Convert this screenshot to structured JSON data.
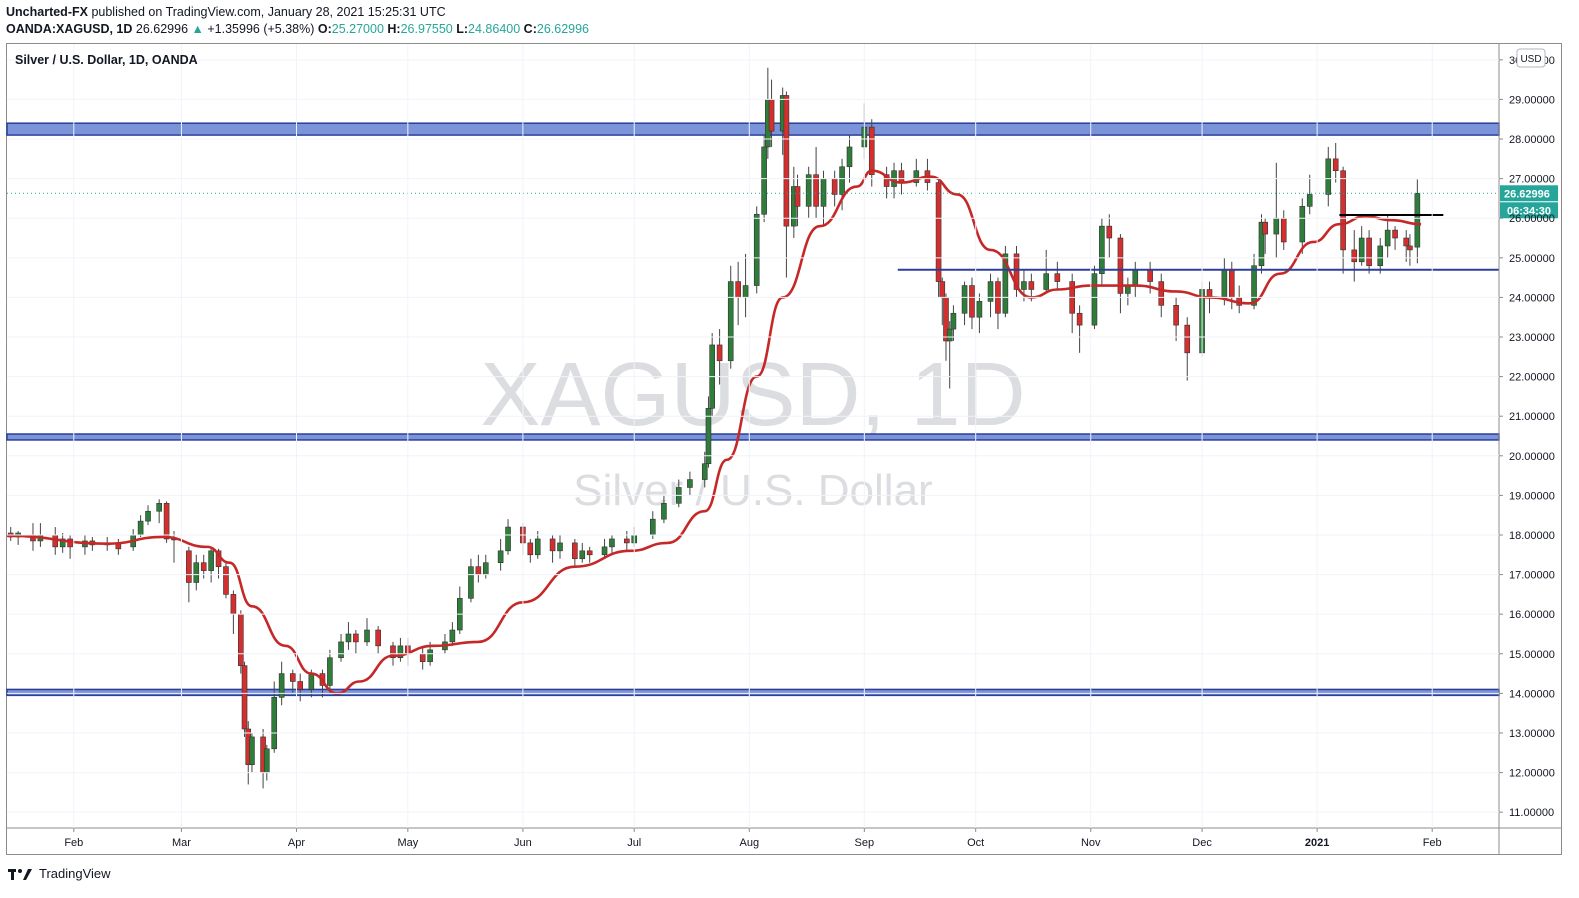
{
  "header": {
    "author": "Uncharted-FX",
    "published": "published on TradingView.com, January 28, 2021 15:25:31 UTC",
    "symbol": "OANDA:XAGUSD, 1D",
    "last": "26.62996",
    "change": "+1.35996 (+5.38%)",
    "o_label": "O:",
    "o": "25.27000",
    "h_label": "H:",
    "h": "26.97550",
    "l_label": "L:",
    "l": "24.86400",
    "c_label": "C:",
    "c": "26.62996"
  },
  "footer": {
    "brand": "TradingView"
  },
  "colors": {
    "up": "#26a69a",
    "down": "#ef5350",
    "candle_up": "#2f7d3a",
    "candle_down": "#d32f2f",
    "ma": "#c62828",
    "zone_fill": "#7b93d9",
    "zone_stroke": "#2c3e9a",
    "accent": "#26a69a"
  },
  "chart_data": {
    "type": "candlestick",
    "title": "Silver / U.S. Dollar, 1D, OANDA",
    "watermark_symbol": "XAGUSD, 1D",
    "watermark_name": "Silver / U.S. Dollar",
    "currency": "USD",
    "ylim": [
      10.6,
      30.4
    ],
    "y_ticks": [
      "30.00000",
      "29.00000",
      "28.00000",
      "27.00000",
      "26.00000",
      "25.00000",
      "24.00000",
      "23.00000",
      "22.00000",
      "21.00000",
      "20.00000",
      "19.00000",
      "18.00000",
      "17.00000",
      "16.00000",
      "15.00000",
      "14.00000",
      "13.00000",
      "12.00000",
      "11.00000"
    ],
    "x_ticks": [
      {
        "label": "Feb",
        "date": "2020-02-01"
      },
      {
        "label": "Mar",
        "date": "2020-03-01"
      },
      {
        "label": "Apr",
        "date": "2020-04-01"
      },
      {
        "label": "May",
        "date": "2020-05-01"
      },
      {
        "label": "Jun",
        "date": "2020-06-01"
      },
      {
        "label": "Jul",
        "date": "2020-07-01"
      },
      {
        "label": "Aug",
        "date": "2020-08-01"
      },
      {
        "label": "Sep",
        "date": "2020-09-01"
      },
      {
        "label": "Oct",
        "date": "2020-10-01"
      },
      {
        "label": "Nov",
        "date": "2020-11-01"
      },
      {
        "label": "Dec",
        "date": "2020-12-01"
      },
      {
        "label": "2021",
        "date": "2021-01-01",
        "bold": true
      },
      {
        "label": "Feb",
        "date": "2021-02-01"
      }
    ],
    "x_range": [
      "2020-01-14",
      "2021-02-19"
    ],
    "last_price": "26.62996",
    "last_value": 26.63,
    "countdown": "06:34:30",
    "zones": [
      {
        "from": 28.1,
        "to": 28.4,
        "start": "2020-01-14",
        "end": "2021-02-19"
      },
      {
        "from": 20.4,
        "to": 20.55,
        "start": "2020-01-14",
        "end": "2021-02-19"
      },
      {
        "from": 13.95,
        "to": 14.1,
        "start": "2020-01-14",
        "end": "2021-02-19"
      }
    ],
    "hlines": [
      {
        "value": 24.7,
        "start": "2020-09-10",
        "end": "2021-02-19",
        "color": "#2c3e9a"
      },
      {
        "value": 26.08,
        "start": "2021-01-07",
        "end": "2021-02-04",
        "color": "#000000"
      }
    ],
    "ma_series": [
      [
        "2020-01-14",
        17.98
      ],
      [
        "2020-02-10",
        17.78
      ],
      [
        "2020-02-25",
        17.95
      ],
      [
        "2020-03-08",
        17.7
      ],
      [
        "2020-03-14",
        17.3
      ],
      [
        "2020-03-20",
        16.2
      ],
      [
        "2020-03-29",
        15.2
      ],
      [
        "2020-04-05",
        14.5
      ],
      [
        "2020-04-12",
        14.0
      ],
      [
        "2020-04-18",
        14.3
      ],
      [
        "2020-04-27",
        14.95
      ],
      [
        "2020-05-08",
        15.2
      ],
      [
        "2020-05-20",
        15.3
      ],
      [
        "2020-06-01",
        16.3
      ],
      [
        "2020-06-15",
        17.2
      ],
      [
        "2020-06-30",
        17.6
      ],
      [
        "2020-07-10",
        17.8
      ],
      [
        "2020-07-20",
        18.6
      ],
      [
        "2020-07-26",
        19.9
      ],
      [
        "2020-08-03",
        22.0
      ],
      [
        "2020-08-10",
        24.0
      ],
      [
        "2020-08-20",
        25.8
      ],
      [
        "2020-08-30",
        26.8
      ],
      [
        "2020-09-03",
        27.2
      ],
      [
        "2020-09-11",
        26.9
      ],
      [
        "2020-09-19",
        27.05
      ],
      [
        "2020-09-26",
        26.6
      ],
      [
        "2020-10-05",
        25.2
      ],
      [
        "2020-10-16",
        24.0
      ],
      [
        "2020-10-23",
        24.2
      ],
      [
        "2020-11-01",
        24.3
      ],
      [
        "2020-11-13",
        24.3
      ],
      [
        "2020-11-24",
        24.15
      ],
      [
        "2020-12-03",
        24.0
      ],
      [
        "2020-12-14",
        23.85
      ],
      [
        "2020-12-22",
        24.6
      ],
      [
        "2020-12-31",
        25.4
      ],
      [
        "2021-01-07",
        25.85
      ],
      [
        "2021-01-14",
        26.05
      ],
      [
        "2021-01-21",
        25.95
      ],
      [
        "2021-01-29",
        25.85
      ]
    ],
    "candles": [
      [
        "2020-01-15",
        18.05,
        17.95,
        18.2,
        17.85
      ],
      [
        "2020-01-17",
        17.95,
        18.05,
        18.1,
        17.75
      ],
      [
        "2020-01-21",
        18.0,
        17.85,
        18.3,
        17.6
      ],
      [
        "2020-01-23",
        17.85,
        18.0,
        18.3,
        17.7
      ],
      [
        "2020-01-27",
        18.0,
        17.7,
        18.2,
        17.5
      ],
      [
        "2020-01-29",
        17.7,
        17.9,
        18.05,
        17.55
      ],
      [
        "2020-01-31",
        17.9,
        17.7,
        18.0,
        17.4
      ],
      [
        "2020-02-04",
        17.7,
        17.85,
        18.0,
        17.5
      ],
      [
        "2020-02-06",
        17.85,
        17.75,
        17.95,
        17.6
      ],
      [
        "2020-02-10",
        17.75,
        17.8,
        17.95,
        17.6
      ],
      [
        "2020-02-13",
        17.8,
        17.65,
        17.9,
        17.5
      ],
      [
        "2020-02-17",
        17.7,
        18.0,
        18.15,
        17.6
      ],
      [
        "2020-02-19",
        18.0,
        18.35,
        18.5,
        17.95
      ],
      [
        "2020-02-21",
        18.35,
        18.6,
        18.75,
        18.25
      ],
      [
        "2020-02-24",
        18.6,
        18.8,
        18.9,
        18.3
      ],
      [
        "2020-02-26",
        18.8,
        17.9,
        18.85,
        17.8
      ],
      [
        "2020-02-28",
        17.9,
        17.9,
        18.1,
        17.3
      ],
      [
        "2020-03-03",
        17.6,
        16.8,
        17.7,
        16.3
      ],
      [
        "2020-03-05",
        16.8,
        17.3,
        17.5,
        16.6
      ],
      [
        "2020-03-07",
        17.3,
        17.1,
        17.5,
        16.9
      ],
      [
        "2020-03-09",
        17.1,
        17.6,
        17.7,
        16.8
      ],
      [
        "2020-03-11",
        17.6,
        17.2,
        17.65,
        16.9
      ],
      [
        "2020-03-13",
        17.2,
        16.5,
        17.3,
        16.4
      ],
      [
        "2020-03-15",
        16.5,
        16.0,
        16.6,
        15.5
      ],
      [
        "2020-03-17",
        16.0,
        14.7,
        16.1,
        14.5
      ],
      [
        "2020-03-18",
        14.7,
        13.1,
        14.8,
        12.9
      ],
      [
        "2020-03-19",
        13.1,
        12.2,
        13.3,
        11.7
      ],
      [
        "2020-03-20",
        12.2,
        12.9,
        13.0,
        12.0
      ],
      [
        "2020-03-23",
        12.9,
        12.0,
        13.1,
        11.6
      ],
      [
        "2020-03-24",
        12.0,
        12.6,
        12.7,
        11.8
      ],
      [
        "2020-03-26",
        12.6,
        13.9,
        14.3,
        12.5
      ],
      [
        "2020-03-28",
        13.9,
        14.5,
        14.8,
        13.7
      ],
      [
        "2020-03-31",
        14.5,
        14.3,
        14.6,
        14.0
      ],
      [
        "2020-04-02",
        14.3,
        14.1,
        14.5,
        13.8
      ],
      [
        "2020-04-05",
        14.1,
        14.5,
        14.6,
        13.9
      ],
      [
        "2020-04-08",
        14.5,
        14.2,
        14.6,
        13.9
      ],
      [
        "2020-04-10",
        14.2,
        14.9,
        15.1,
        14.0
      ],
      [
        "2020-04-13",
        14.9,
        15.3,
        15.5,
        14.8
      ],
      [
        "2020-04-15",
        15.3,
        15.5,
        15.8,
        15.1
      ],
      [
        "2020-04-17",
        15.5,
        15.3,
        15.6,
        15.0
      ],
      [
        "2020-04-20",
        15.3,
        15.6,
        15.9,
        15.2
      ],
      [
        "2020-04-23",
        15.6,
        15.2,
        15.7,
        15.0
      ],
      [
        "2020-04-27",
        15.2,
        14.9,
        15.3,
        14.7
      ],
      [
        "2020-04-29",
        14.9,
        15.2,
        15.4,
        14.8
      ],
      [
        "2020-05-01",
        15.2,
        15.0,
        15.4,
        14.7
      ],
      [
        "2020-05-05",
        15.0,
        14.8,
        15.2,
        14.6
      ],
      [
        "2020-05-07",
        14.8,
        15.1,
        15.3,
        14.7
      ],
      [
        "2020-05-11",
        15.1,
        15.3,
        15.5,
        15.0
      ],
      [
        "2020-05-13",
        15.3,
        15.6,
        15.8,
        15.2
      ],
      [
        "2020-05-15",
        15.6,
        16.4,
        16.7,
        15.5
      ],
      [
        "2020-05-18",
        16.4,
        17.2,
        17.4,
        16.3
      ],
      [
        "2020-05-20",
        17.2,
        17.0,
        17.5,
        16.8
      ],
      [
        "2020-05-22",
        17.0,
        17.3,
        17.5,
        16.9
      ],
      [
        "2020-05-26",
        17.3,
        17.6,
        17.9,
        17.1
      ],
      [
        "2020-05-28",
        17.6,
        18.2,
        18.4,
        17.5
      ],
      [
        "2020-06-01",
        18.2,
        17.8,
        18.3,
        17.5
      ],
      [
        "2020-06-03",
        17.8,
        17.5,
        17.9,
        17.3
      ],
      [
        "2020-06-05",
        17.5,
        17.9,
        18.1,
        17.4
      ],
      [
        "2020-06-09",
        17.9,
        17.6,
        18.0,
        17.3
      ],
      [
        "2020-06-11",
        17.6,
        17.8,
        18.0,
        17.4
      ],
      [
        "2020-06-15",
        17.8,
        17.4,
        17.9,
        17.2
      ],
      [
        "2020-06-17",
        17.4,
        17.6,
        17.8,
        17.3
      ],
      [
        "2020-06-19",
        17.6,
        17.5,
        17.7,
        17.3
      ],
      [
        "2020-06-23",
        17.5,
        17.7,
        17.9,
        17.4
      ],
      [
        "2020-06-25",
        17.7,
        17.9,
        18.0,
        17.5
      ],
      [
        "2020-06-29",
        17.9,
        17.8,
        18.1,
        17.6
      ],
      [
        "2020-07-01",
        17.8,
        18.0,
        18.2,
        17.7
      ],
      [
        "2020-07-06",
        18.0,
        18.4,
        18.6,
        17.9
      ],
      [
        "2020-07-09",
        18.4,
        18.8,
        19.0,
        18.3
      ],
      [
        "2020-07-13",
        18.8,
        19.2,
        19.4,
        18.7
      ],
      [
        "2020-07-16",
        19.2,
        19.4,
        19.6,
        19.0
      ],
      [
        "2020-07-20",
        19.4,
        19.8,
        20.1,
        19.2
      ],
      [
        "2020-07-21",
        19.8,
        21.2,
        21.5,
        19.7
      ],
      [
        "2020-07-22",
        21.2,
        22.8,
        23.1,
        21.0
      ],
      [
        "2020-07-24",
        22.8,
        22.4,
        23.2,
        21.8
      ],
      [
        "2020-07-27",
        22.4,
        24.4,
        24.8,
        22.2
      ],
      [
        "2020-07-29",
        24.4,
        24.0,
        24.9,
        23.3
      ],
      [
        "2020-07-31",
        24.0,
        24.3,
        25.1,
        23.5
      ],
      [
        "2020-08-03",
        24.3,
        26.1,
        26.3,
        24.1
      ],
      [
        "2020-08-05",
        26.1,
        27.8,
        28.1,
        25.9
      ],
      [
        "2020-08-06",
        27.8,
        29.0,
        29.8,
        27.5
      ],
      [
        "2020-08-07",
        29.0,
        28.2,
        29.5,
        27.8
      ],
      [
        "2020-08-10",
        28.2,
        29.1,
        29.3,
        27.6
      ],
      [
        "2020-08-11",
        29.1,
        25.8,
        29.2,
        24.5
      ],
      [
        "2020-08-13",
        25.8,
        26.8,
        27.3,
        25.5
      ],
      [
        "2020-08-14",
        26.8,
        26.3,
        27.1,
        25.8
      ],
      [
        "2020-08-17",
        26.3,
        27.1,
        27.3,
        26.0
      ],
      [
        "2020-08-19",
        27.1,
        26.3,
        27.8,
        26.0
      ],
      [
        "2020-08-21",
        26.3,
        27.0,
        27.2,
        25.8
      ],
      [
        "2020-08-24",
        27.0,
        26.6,
        27.2,
        26.3
      ],
      [
        "2020-08-26",
        26.6,
        27.3,
        27.5,
        26.2
      ],
      [
        "2020-08-28",
        27.3,
        27.8,
        28.1,
        26.9
      ],
      [
        "2020-09-01",
        27.8,
        28.3,
        28.9,
        27.5
      ],
      [
        "2020-09-03",
        28.3,
        27.1,
        28.5,
        26.8
      ],
      [
        "2020-09-07",
        27.1,
        26.8,
        27.3,
        26.5
      ],
      [
        "2020-09-09",
        26.8,
        27.2,
        27.4,
        26.5
      ],
      [
        "2020-09-11",
        27.2,
        26.9,
        27.4,
        26.6
      ],
      [
        "2020-09-15",
        26.9,
        27.2,
        27.5,
        26.8
      ],
      [
        "2020-09-18",
        27.2,
        26.9,
        27.5,
        26.7
      ],
      [
        "2020-09-21",
        26.9,
        24.4,
        27.0,
        24.0
      ],
      [
        "2020-09-22",
        24.4,
        24.0,
        24.5,
        23.3
      ],
      [
        "2020-09-23",
        24.0,
        22.9,
        24.1,
        22.4
      ],
      [
        "2020-09-24",
        22.9,
        23.2,
        23.4,
        21.7
      ],
      [
        "2020-09-25",
        23.2,
        23.6,
        23.8,
        22.9
      ],
      [
        "2020-09-28",
        23.6,
        24.3,
        24.4,
        23.3
      ],
      [
        "2020-09-30",
        24.3,
        23.5,
        24.5,
        23.2
      ],
      [
        "2020-10-02",
        23.5,
        23.9,
        24.1,
        23.1
      ],
      [
        "2020-10-05",
        23.9,
        24.4,
        24.6,
        23.5
      ],
      [
        "2020-10-07",
        24.4,
        23.6,
        24.5,
        23.2
      ],
      [
        "2020-10-09",
        23.6,
        25.1,
        25.3,
        23.5
      ],
      [
        "2020-10-12",
        25.1,
        24.2,
        25.3,
        24.0
      ],
      [
        "2020-10-14",
        24.2,
        24.4,
        24.7,
        23.9
      ],
      [
        "2020-10-16",
        24.4,
        24.2,
        24.6,
        23.9
      ],
      [
        "2020-10-20",
        24.2,
        24.6,
        25.2,
        24.1
      ],
      [
        "2020-10-23",
        24.6,
        24.4,
        24.9,
        24.2
      ],
      [
        "2020-10-27",
        24.4,
        23.6,
        24.6,
        23.1
      ],
      [
        "2020-10-29",
        23.6,
        23.3,
        23.8,
        22.6
      ],
      [
        "2020-11-02",
        23.3,
        24.6,
        24.8,
        23.2
      ],
      [
        "2020-11-04",
        24.6,
        25.8,
        26.0,
        24.3
      ],
      [
        "2020-11-06",
        25.8,
        25.5,
        26.1,
        25.0
      ],
      [
        "2020-11-09",
        25.5,
        24.1,
        25.6,
        23.6
      ],
      [
        "2020-11-11",
        24.1,
        24.3,
        24.5,
        23.8
      ],
      [
        "2020-11-13",
        24.3,
        24.7,
        24.9,
        24.0
      ],
      [
        "2020-11-17",
        24.7,
        24.4,
        24.9,
        24.1
      ],
      [
        "2020-11-20",
        24.4,
        23.8,
        24.6,
        23.5
      ],
      [
        "2020-11-24",
        23.8,
        23.3,
        24.0,
        22.9
      ],
      [
        "2020-11-27",
        23.3,
        22.6,
        23.5,
        21.9
      ],
      [
        "2020-12-01",
        22.6,
        24.2,
        24.4,
        22.5
      ],
      [
        "2020-12-03",
        24.2,
        24.0,
        24.4,
        23.6
      ],
      [
        "2020-12-07",
        24.0,
        24.7,
        25.0,
        23.8
      ],
      [
        "2020-12-09",
        24.7,
        24.0,
        24.9,
        23.7
      ],
      [
        "2020-12-11",
        24.0,
        23.8,
        24.3,
        23.6
      ],
      [
        "2020-12-15",
        23.8,
        24.8,
        25.1,
        23.7
      ],
      [
        "2020-12-17",
        24.8,
        25.9,
        26.1,
        24.6
      ],
      [
        "2020-12-18",
        25.9,
        25.6,
        26.0,
        25.1
      ],
      [
        "2020-12-21",
        25.6,
        26.0,
        27.4,
        25.0
      ],
      [
        "2020-12-23",
        26.0,
        25.4,
        26.2,
        25.2
      ],
      [
        "2020-12-28",
        25.4,
        26.3,
        26.5,
        25.1
      ],
      [
        "2020-12-30",
        26.3,
        26.6,
        27.1,
        26.1
      ],
      [
        "2021-01-04",
        26.6,
        27.5,
        27.8,
        26.3
      ],
      [
        "2021-01-06",
        27.5,
        27.2,
        27.9,
        26.9
      ],
      [
        "2021-01-08",
        27.2,
        25.2,
        27.3,
        24.6
      ],
      [
        "2021-01-11",
        25.2,
        24.9,
        25.7,
        24.4
      ],
      [
        "2021-01-13",
        24.9,
        25.5,
        25.8,
        24.8
      ],
      [
        "2021-01-15",
        25.5,
        24.8,
        25.7,
        24.6
      ],
      [
        "2021-01-18",
        24.8,
        25.3,
        25.5,
        24.6
      ],
      [
        "2021-01-20",
        25.3,
        25.7,
        26.1,
        25.0
      ],
      [
        "2021-01-22",
        25.7,
        25.5,
        25.8,
        25.2
      ],
      [
        "2021-01-25",
        25.5,
        25.3,
        25.7,
        24.9
      ],
      [
        "2021-01-26",
        25.3,
        25.2,
        25.6,
        24.8
      ],
      [
        "2021-01-28",
        25.27,
        26.63,
        26.98,
        24.86
      ]
    ]
  }
}
